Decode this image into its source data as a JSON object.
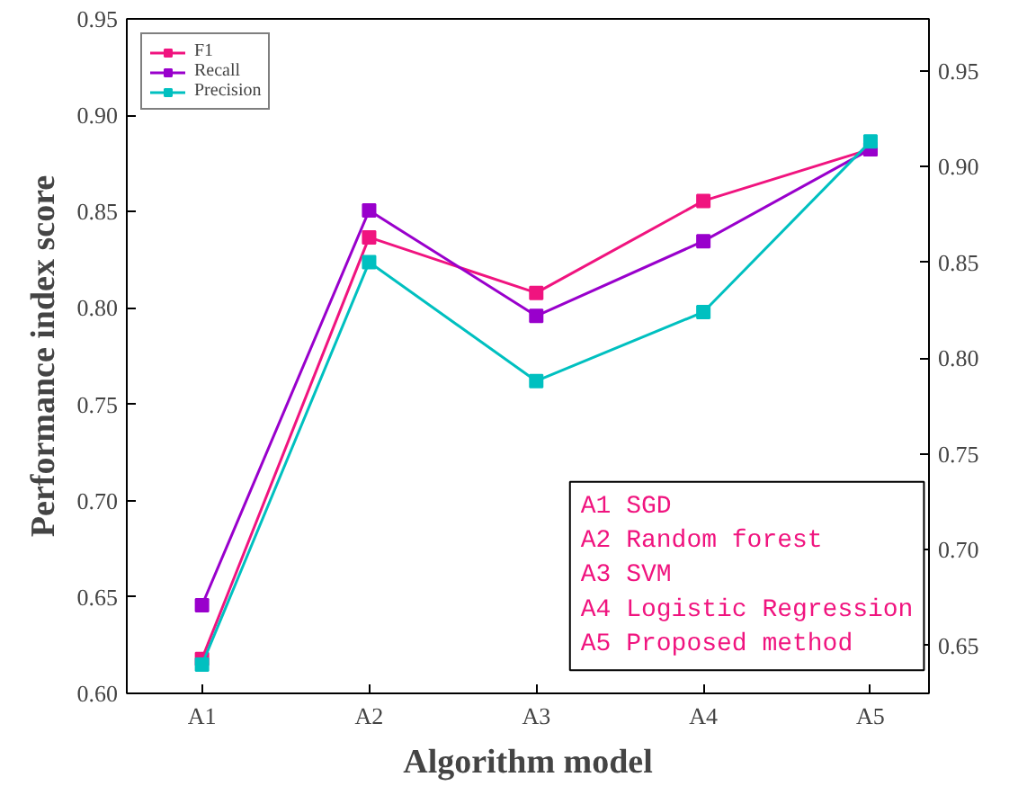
{
  "chart_data": {
    "type": "line",
    "xlabel": "Algorithm model",
    "ylabel": "Performance index score",
    "categories": [
      "A1",
      "A2",
      "A3",
      "A4",
      "A5"
    ],
    "series": [
      {
        "name": "F1",
        "color": "#f0147f",
        "axis": "y2",
        "values": [
          0.643,
          0.863,
          0.834,
          0.882,
          0.909
        ]
      },
      {
        "name": "Recall",
        "color": "#9900cc",
        "axis": "y2",
        "values": [
          0.671,
          0.877,
          0.822,
          0.861,
          0.909
        ]
      },
      {
        "name": "Precision",
        "color": "#00c0c0",
        "axis": "y2",
        "values": [
          0.64,
          0.85,
          0.788,
          0.824,
          0.913
        ]
      }
    ],
    "ylim": [
      0.6,
      0.95
    ],
    "yticks": [
      {
        "value": 0.6,
        "label": "0.60"
      },
      {
        "value": 0.65,
        "label": "0.65"
      },
      {
        "value": 0.7,
        "label": "0.70"
      },
      {
        "value": 0.75,
        "label": "0.75"
      },
      {
        "value": 0.8,
        "label": "0.80"
      },
      {
        "value": 0.85,
        "label": "0.85"
      },
      {
        "value": 0.9,
        "label": "0.90"
      },
      {
        "value": 0.95,
        "label": "0.95"
      }
    ],
    "y2lim": [
      0.625,
      0.977
    ],
    "y2ticks": [
      {
        "value": 0.65,
        "label": "0.65"
      },
      {
        "value": 0.7,
        "label": "0.70"
      },
      {
        "value": 0.75,
        "label": "0.75"
      },
      {
        "value": 0.8,
        "label": "0.80"
      },
      {
        "value": 0.85,
        "label": "0.85"
      },
      {
        "value": 0.9,
        "label": "0.90"
      },
      {
        "value": 0.95,
        "label": "0.95"
      }
    ],
    "legend": "top left",
    "marker": "square",
    "line_style": "solid",
    "grid": false,
    "annotations": [
      "A1 SGD",
      "A2 Random forest",
      "A3 SVM",
      "A4 Logistic Regression",
      "A5 Proposed method"
    ]
  }
}
